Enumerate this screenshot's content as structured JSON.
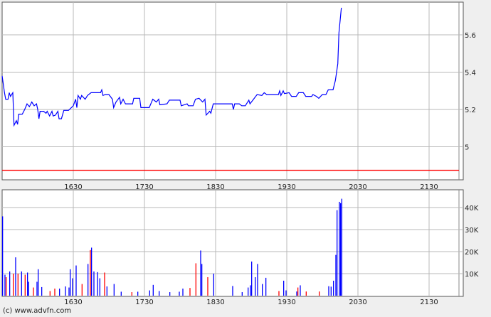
{
  "footer": {
    "copyright": "(c) www.advfn.com"
  },
  "colors": {
    "price": "#0000ff",
    "reference": "#ff0000",
    "vol_blue": "#0000ff",
    "vol_red": "#ff0000",
    "grid": "#b8b8b8"
  },
  "chart_data": [
    {
      "type": "line",
      "xlim": [
        "15:30",
        "21:50"
      ],
      "ylim": [
        4.83,
        5.77
      ],
      "grid": true,
      "x_ticks": [
        "1630",
        "1730",
        "1830",
        "1930",
        "2030",
        "2130"
      ],
      "y_ticks": [
        "5",
        "5.2",
        "5.4",
        "5.6"
      ],
      "reference_line": 4.874,
      "series": [
        {
          "points": [
            [
              "15:30",
              5.38
            ],
            [
              "15:32",
              5.29
            ],
            [
              "15:33",
              5.255
            ],
            [
              "15:35",
              5.255
            ],
            [
              "15:36",
              5.29
            ],
            [
              "15:37",
              5.27
            ],
            [
              "15:39",
              5.29
            ],
            [
              "15:40",
              5.115
            ],
            [
              "15:42",
              5.14
            ],
            [
              "15:43",
              5.12
            ],
            [
              "15:44",
              5.175
            ],
            [
              "15:47",
              5.175
            ],
            [
              "15:49",
              5.2
            ],
            [
              "15:51",
              5.23
            ],
            [
              "15:53",
              5.215
            ],
            [
              "15:55",
              5.24
            ],
            [
              "15:57",
              5.22
            ],
            [
              "15:59",
              5.23
            ],
            [
              "16:00",
              5.2
            ],
            [
              "16:01",
              5.15
            ],
            [
              "16:02",
              5.19
            ],
            [
              "16:05",
              5.19
            ],
            [
              "16:07",
              5.18
            ],
            [
              "16:08",
              5.19
            ],
            [
              "16:10",
              5.165
            ],
            [
              "16:12",
              5.19
            ],
            [
              "16:13",
              5.165
            ],
            [
              "16:15",
              5.17
            ],
            [
              "16:17",
              5.19
            ],
            [
              "16:18",
              5.15
            ],
            [
              "16:20",
              5.15
            ],
            [
              "16:22",
              5.195
            ],
            [
              "16:26",
              5.195
            ],
            [
              "16:30",
              5.22
            ],
            [
              "16:32",
              5.255
            ],
            [
              "16:33",
              5.21
            ],
            [
              "16:34",
              5.275
            ],
            [
              "16:36",
              5.255
            ],
            [
              "16:37",
              5.275
            ],
            [
              "16:40",
              5.255
            ],
            [
              "16:42",
              5.275
            ],
            [
              "16:45",
              5.29
            ],
            [
              "16:47",
              5.29
            ],
            [
              "16:53",
              5.29
            ],
            [
              "16:54",
              5.305
            ],
            [
              "16:55",
              5.275
            ],
            [
              "16:57",
              5.28
            ],
            [
              "17:00",
              5.28
            ],
            [
              "17:03",
              5.255
            ],
            [
              "17:04",
              5.21
            ],
            [
              "17:06",
              5.24
            ],
            [
              "17:09",
              5.265
            ],
            [
              "17:10",
              5.23
            ],
            [
              "17:12",
              5.255
            ],
            [
              "17:14",
              5.23
            ],
            [
              "17:20",
              5.23
            ],
            [
              "17:21",
              5.26
            ],
            [
              "17:26",
              5.26
            ],
            [
              "17:27",
              5.21
            ],
            [
              "17:34",
              5.21
            ],
            [
              "17:37",
              5.255
            ],
            [
              "17:40",
              5.24
            ],
            [
              "17:42",
              5.255
            ],
            [
              "17:43",
              5.225
            ],
            [
              "17:49",
              5.23
            ],
            [
              "17:51",
              5.25
            ],
            [
              "18:00",
              5.25
            ],
            [
              "18:01",
              5.22
            ],
            [
              "18:06",
              5.23
            ],
            [
              "18:07",
              5.22
            ],
            [
              "18:11",
              5.22
            ],
            [
              "18:13",
              5.255
            ],
            [
              "18:16",
              5.26
            ],
            [
              "18:19",
              5.24
            ],
            [
              "18:21",
              5.255
            ],
            [
              "18:22",
              5.17
            ],
            [
              "18:25",
              5.19
            ],
            [
              "18:26",
              5.18
            ],
            [
              "18:28",
              5.23
            ],
            [
              "18:44",
              5.23
            ],
            [
              "18:45",
              5.2
            ],
            [
              "18:46",
              5.23
            ],
            [
              "18:50",
              5.23
            ],
            [
              "18:52",
              5.22
            ],
            [
              "18:55",
              5.22
            ],
            [
              "18:58",
              5.25
            ],
            [
              "18:59",
              5.23
            ],
            [
              "19:02",
              5.255
            ],
            [
              "19:05",
              5.28
            ],
            [
              "19:09",
              5.275
            ],
            [
              "19:11",
              5.29
            ],
            [
              "19:13",
              5.28
            ],
            [
              "19:23",
              5.28
            ],
            [
              "19:24",
              5.3
            ],
            [
              "19:25",
              5.275
            ],
            [
              "19:27",
              5.3
            ],
            [
              "19:28",
              5.285
            ],
            [
              "19:32",
              5.29
            ],
            [
              "19:34",
              5.27
            ],
            [
              "19:38",
              5.27
            ],
            [
              "19:40",
              5.29
            ],
            [
              "19:44",
              5.29
            ],
            [
              "19:46",
              5.27
            ],
            [
              "19:51",
              5.27
            ],
            [
              "19:52",
              5.28
            ],
            [
              "19:55",
              5.27
            ],
            [
              "19:57",
              5.26
            ],
            [
              "20:00",
              5.28
            ],
            [
              "20:03",
              5.28
            ],
            [
              "20:05",
              5.305
            ],
            [
              "20:09",
              5.305
            ],
            [
              "20:11",
              5.355
            ],
            [
              "20:13",
              5.445
            ],
            [
              "20:14",
              5.61
            ],
            [
              "20:16",
              5.745
            ]
          ]
        }
      ]
    },
    {
      "type": "bar",
      "xlim": [
        "15:30",
        "21:50"
      ],
      "ylim": [
        0,
        48
      ],
      "grid": true,
      "x_ticks": [
        "1630",
        "1730",
        "1830",
        "1930",
        "2030",
        "2130"
      ],
      "y_ticks": [
        "10K",
        "20K",
        "30K",
        "40K"
      ],
      "bars": [
        [
          "15:30",
          36,
          "b"
        ],
        [
          "15:32",
          9.5,
          "b"
        ],
        [
          "15:33",
          8.4,
          "r"
        ],
        [
          "15:36",
          11,
          "b"
        ],
        [
          "15:39",
          10,
          "r"
        ],
        [
          "15:41",
          17.4,
          "b"
        ],
        [
          "15:43",
          10,
          "r"
        ],
        [
          "15:46",
          11,
          "b"
        ],
        [
          "15:49",
          9.5,
          "r"
        ],
        [
          "15:51",
          10.5,
          "b"
        ],
        [
          "15:52",
          6.3,
          "b"
        ],
        [
          "15:56",
          3.7,
          "r"
        ],
        [
          "15:59",
          6.3,
          "b"
        ],
        [
          "16:00",
          12,
          "b"
        ],
        [
          "16:03",
          3.9,
          "b"
        ],
        [
          "16:10",
          2.1,
          "r"
        ],
        [
          "16:14",
          3.2,
          "r"
        ],
        [
          "16:18",
          3.2,
          "b"
        ],
        [
          "16:23",
          4.2,
          "b"
        ],
        [
          "16:26",
          3.7,
          "b"
        ],
        [
          "16:27",
          12,
          "b"
        ],
        [
          "16:29",
          7.9,
          "b"
        ],
        [
          "16:32",
          13.7,
          "b"
        ],
        [
          "16:37",
          5.3,
          "r"
        ],
        [
          "16:42",
          14.4,
          "b"
        ],
        [
          "16:44",
          20.7,
          "r"
        ],
        [
          "16:45",
          21.8,
          "b"
        ],
        [
          "16:47",
          11,
          "b"
        ],
        [
          "16:50",
          10.7,
          "b"
        ],
        [
          "16:52",
          7.9,
          "b"
        ],
        [
          "16:56",
          10.5,
          "r"
        ],
        [
          "16:58",
          4.2,
          "b"
        ],
        [
          "17:04",
          5.3,
          "b"
        ],
        [
          "17:10",
          1.8,
          "b"
        ],
        [
          "17:19",
          1.6,
          "r"
        ],
        [
          "17:24",
          1.8,
          "b"
        ],
        [
          "17:34",
          2.4,
          "b"
        ],
        [
          "17:37",
          4.9,
          "b"
        ],
        [
          "17:42",
          2.1,
          "b"
        ],
        [
          "17:51",
          1.6,
          "b"
        ],
        [
          "17:59",
          1.8,
          "b"
        ],
        [
          "18:02",
          3.2,
          "b"
        ],
        [
          "18:08",
          3.5,
          "r"
        ],
        [
          "18:13",
          14.7,
          "r"
        ],
        [
          "18:17",
          20.5,
          "b"
        ],
        [
          "18:18",
          14.4,
          "b"
        ],
        [
          "18:23",
          8.4,
          "r"
        ],
        [
          "18:28",
          10,
          "b"
        ],
        [
          "18:44",
          4.4,
          "b"
        ],
        [
          "18:52",
          1.6,
          "b"
        ],
        [
          "18:57",
          3.7,
          "b"
        ],
        [
          "18:59",
          4.7,
          "b"
        ],
        [
          "19:00",
          15.5,
          "b"
        ],
        [
          "19:03",
          8.4,
          "b"
        ],
        [
          "19:05",
          14.4,
          "b"
        ],
        [
          "19:09",
          5.3,
          "b"
        ],
        [
          "19:12",
          8.1,
          "b"
        ],
        [
          "19:23",
          2.1,
          "r"
        ],
        [
          "19:27",
          6.8,
          "b"
        ],
        [
          "19:29",
          2.4,
          "b"
        ],
        [
          "19:38",
          1.9,
          "b"
        ],
        [
          "19:39",
          3.7,
          "r"
        ],
        [
          "19:41",
          4.7,
          "b"
        ],
        [
          "19:46",
          1.9,
          "r"
        ],
        [
          "19:57",
          1.9,
          "r"
        ],
        [
          "20:05",
          4.3,
          "b"
        ],
        [
          "20:07",
          4.1,
          "b"
        ],
        [
          "20:09",
          6.8,
          "b"
        ],
        [
          "20:11",
          18.5,
          "b"
        ],
        [
          "20:12",
          38.8,
          "b"
        ],
        [
          "20:14",
          42.6,
          "b"
        ],
        [
          "20:15",
          42,
          "b"
        ],
        [
          "20:16",
          44,
          "b"
        ]
      ]
    }
  ]
}
